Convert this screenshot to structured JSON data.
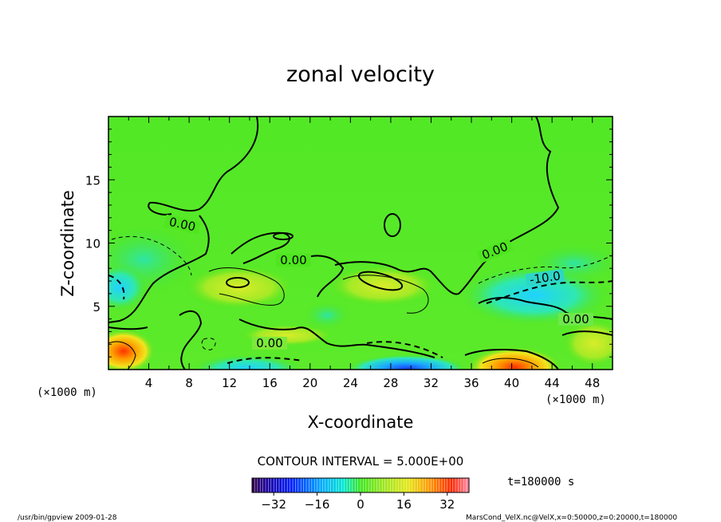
{
  "chart_data": {
    "type": "heatmap",
    "title": "zonal velocity",
    "xlabel": "X-coordinate",
    "ylabel": "Z-coordinate",
    "x_unit": "(×1000 m)",
    "y_unit": "(×1000 m)",
    "xlim": [
      0,
      50
    ],
    "ylim": [
      0,
      20
    ],
    "x_ticks": [
      4,
      8,
      12,
      16,
      20,
      24,
      28,
      32,
      36,
      40,
      44,
      48
    ],
    "y_ticks": [
      5,
      10,
      15
    ],
    "contour_interval": "CONTOUR INTERVAL = 5.000E+00",
    "contour_labels": [
      "0.00",
      "0.00",
      "0.00",
      "0.00",
      "0.00",
      "-10.0"
    ],
    "colorbar": {
      "range": [
        -40,
        40
      ],
      "ticks": [
        -32,
        -16,
        0,
        16,
        32
      ]
    },
    "time_label": "t=180000 s",
    "footer_left": "/usr/bin/gpview   2009-01-28",
    "footer_right": "MarsCond_VelX.nc@VelX,x=0:50000,z=0:20000,t=180000",
    "colors": {
      "field_background": "#4ee61e",
      "negative_strong": "#1a6cff",
      "positive_strong": "#ff3a00"
    }
  }
}
